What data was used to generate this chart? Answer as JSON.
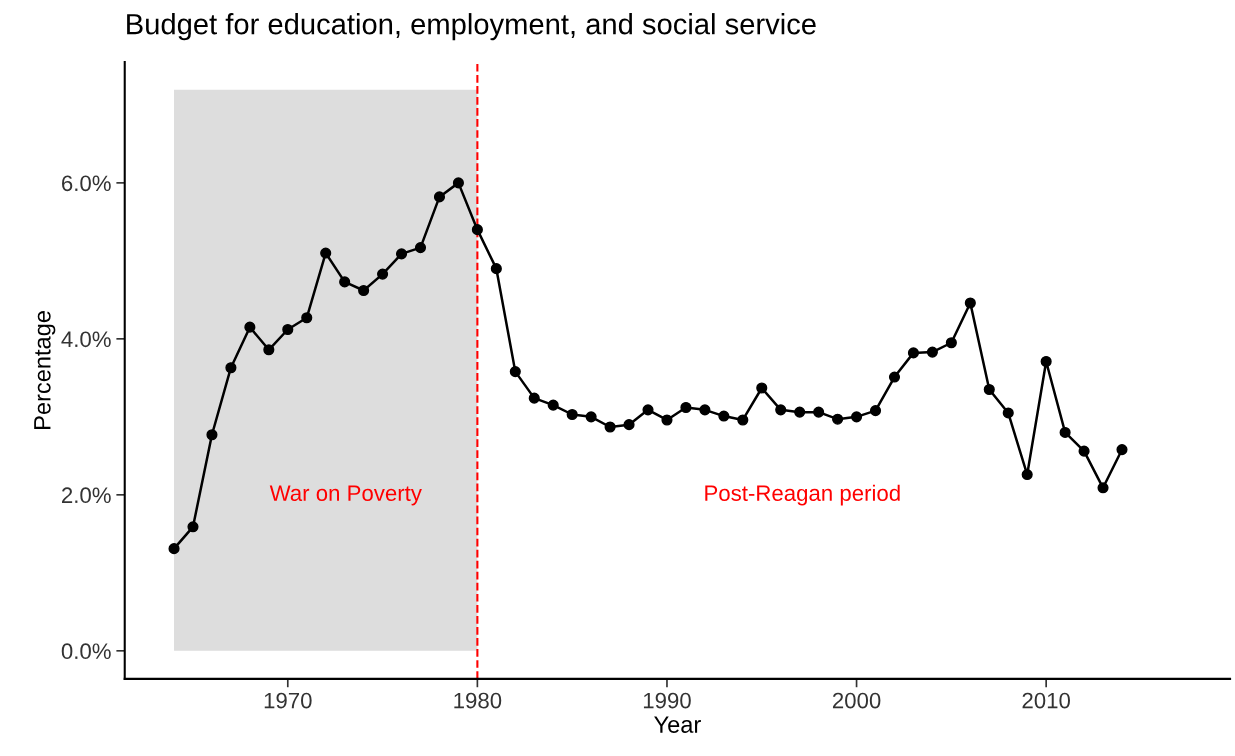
{
  "chart_data": {
    "type": "line",
    "title": "Budget for education, employment, and social service",
    "xlabel": "Year",
    "ylabel": "Percentage",
    "x": [
      1964,
      1965,
      1966,
      1967,
      1968,
      1969,
      1970,
      1971,
      1972,
      1973,
      1974,
      1975,
      1976,
      1977,
      1978,
      1979,
      1980,
      1981,
      1982,
      1983,
      1984,
      1985,
      1986,
      1987,
      1988,
      1989,
      1990,
      1991,
      1992,
      1993,
      1994,
      1995,
      1996,
      1997,
      1998,
      1999,
      2000,
      2001,
      2002,
      2003,
      2004,
      2005,
      2006,
      2007,
      2008,
      2009,
      2010,
      2011,
      2012,
      2013,
      2014
    ],
    "series": [
      {
        "color": "#000000",
        "values": [
          1.31,
          1.59,
          2.77,
          3.63,
          4.15,
          3.86,
          4.12,
          4.27,
          5.1,
          4.73,
          4.62,
          4.83,
          5.09,
          5.17,
          5.82,
          6.0,
          5.4,
          4.9,
          3.58,
          3.24,
          3.15,
          3.03,
          3.0,
          2.87,
          2.9,
          3.09,
          2.96,
          3.12,
          3.09,
          3.01,
          2.96,
          3.37,
          3.09,
          3.06,
          3.06,
          2.97,
          3.0,
          3.08,
          3.51,
          3.82,
          3.83,
          3.95,
          4.46,
          3.35,
          3.05,
          2.26,
          3.71,
          2.8,
          2.56,
          2.09,
          2.58
        ]
      }
    ],
    "marker": "circle",
    "line_style": "solid",
    "grid": false,
    "legend": false,
    "xlim": [
      1961.4,
      2019.7
    ],
    "xticks": [
      1970,
      1980,
      1990,
      2000,
      2010
    ],
    "ylim": [
      -0.36,
      7.55
    ],
    "yticks": [
      {
        "value": 0,
        "label": "0.0%"
      },
      {
        "value": 2,
        "label": "2.0%"
      },
      {
        "value": 4,
        "label": "4.0%"
      },
      {
        "value": 6,
        "label": "6.0%"
      }
    ],
    "bands": [
      {
        "axis": "x",
        "from": 1964,
        "to": 1980,
        "color": "#dddddd"
      }
    ],
    "ref_lines": [
      {
        "axis": "x",
        "value": 1980,
        "color": "#ff0000",
        "line_style": "dashed"
      }
    ],
    "annotations": [
      "War on Poverty",
      "Post-Reagan period"
    ]
  }
}
